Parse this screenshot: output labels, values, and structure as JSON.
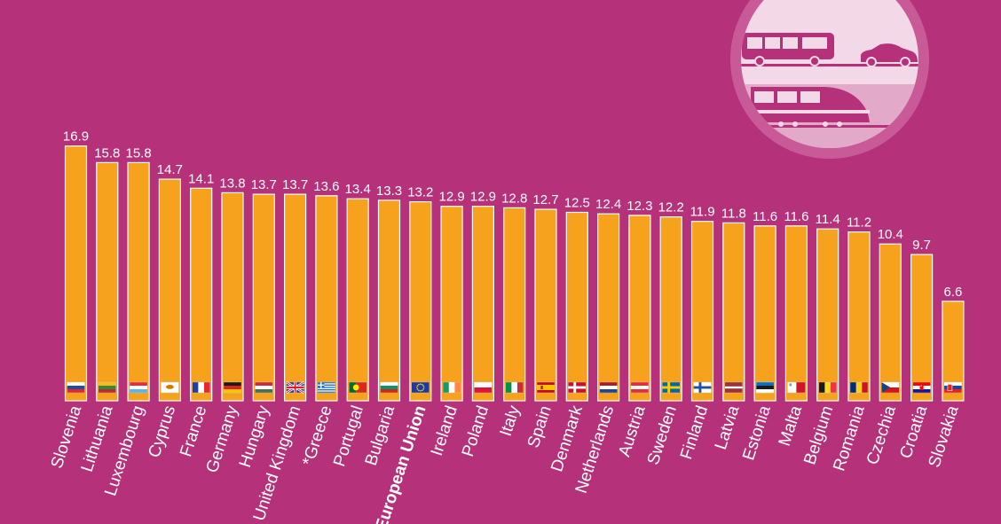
{
  "colors": {
    "background": "#b5317a",
    "bar": "#f6a21c",
    "bar_edge": "#ffffff",
    "text": "#ffffff"
  },
  "icons": [
    "bus-icon",
    "car-icon",
    "train-icon"
  ],
  "chart_data": {
    "type": "bar",
    "title": "",
    "xlabel": "",
    "ylabel": "",
    "ylim": [
      0,
      17
    ],
    "grid": false,
    "categories": [
      "Slovenia",
      "Lithuania",
      "Luxembourg",
      "Cyprus",
      "France",
      "Germany",
      "Hungary",
      "United Kingdom",
      "*Greece",
      "Portugal",
      "Bulgaria",
      "European Union",
      "Ireland",
      "Poland",
      "Italy",
      "Spain",
      "Denmark",
      "Netherlands",
      "Austria",
      "Sweden",
      "Finland",
      "Latvia",
      "Estonia",
      "Malta",
      "Belgium",
      "Romania",
      "Czechia",
      "Croatia",
      "Slovakia"
    ],
    "values": [
      16.9,
      15.8,
      15.8,
      14.7,
      14.1,
      13.8,
      13.7,
      13.7,
      13.6,
      13.4,
      13.3,
      13.2,
      12.9,
      12.9,
      12.8,
      12.7,
      12.5,
      12.4,
      12.3,
      12.2,
      11.9,
      11.8,
      11.6,
      11.6,
      11.4,
      11.2,
      10.4,
      9.7,
      6.6
    ],
    "value_labels": [
      "16.9",
      "15.8",
      "15.8",
      "14.7",
      "14.1",
      "13.8",
      "13.7",
      "13.7",
      "13.6",
      "13.4",
      "13.3",
      "13.2",
      "12.9",
      "12.9",
      "12.8",
      "12.7",
      "12.5",
      "12.4",
      "12.3",
      "12.2",
      "11.9",
      "11.8",
      "11.6",
      "11.6",
      "11.4",
      "11.2",
      "10.4",
      "9.7",
      "6.6"
    ],
    "highlight": "European Union",
    "flags": [
      "flag-slovenia-icon",
      "flag-lithuania-icon",
      "flag-luxembourg-icon",
      "flag-cyprus-icon",
      "flag-france-icon",
      "flag-germany-icon",
      "flag-hungary-icon",
      "flag-united-kingdom-icon",
      "flag-greece-icon",
      "flag-portugal-icon",
      "flag-bulgaria-icon",
      "flag-european-union-icon",
      "flag-ireland-icon",
      "flag-poland-icon",
      "flag-italy-icon",
      "flag-spain-icon",
      "flag-denmark-icon",
      "flag-netherlands-icon",
      "flag-austria-icon",
      "flag-sweden-icon",
      "flag-finland-icon",
      "flag-latvia-icon",
      "flag-estonia-icon",
      "flag-malta-icon",
      "flag-belgium-icon",
      "flag-romania-icon",
      "flag-czechia-icon",
      "flag-croatia-icon",
      "flag-slovakia-icon"
    ]
  }
}
